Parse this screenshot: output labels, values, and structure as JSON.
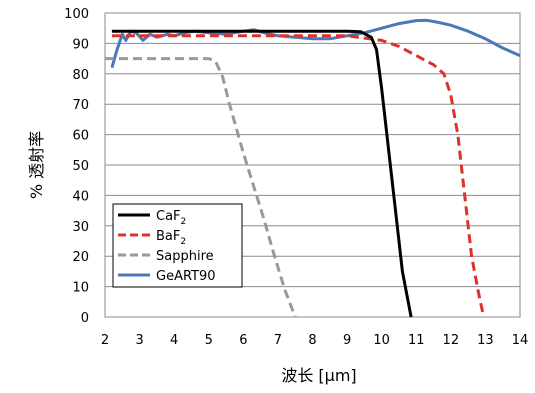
{
  "chart_data": {
    "type": "line",
    "xlabel": "波长 [µm]",
    "ylabel": "% 透射率",
    "xlim": [
      2,
      14
    ],
    "ylim": [
      0,
      100
    ],
    "x_ticks": [
      "2",
      "3",
      "4",
      "5",
      "6",
      "7",
      "8",
      "9",
      "10",
      "11",
      "12",
      "13",
      "14"
    ],
    "y_ticks": [
      "0",
      "10",
      "20",
      "30",
      "40",
      "50",
      "60",
      "70",
      "80",
      "90",
      "100"
    ],
    "grid": "horizontal",
    "legend_position": "bottom-left",
    "series": [
      {
        "name": "CaF₂",
        "legend_main": "CaF",
        "legend_sub": "2",
        "color": "#000000",
        "dash": "solid",
        "points": [
          [
            2.2,
            94
          ],
          [
            9.0,
            94
          ],
          [
            9.4,
            93.8
          ],
          [
            9.7,
            92
          ],
          [
            9.85,
            88
          ],
          [
            10.0,
            75
          ],
          [
            10.2,
            55
          ],
          [
            10.4,
            35
          ],
          [
            10.6,
            15
          ],
          [
            10.85,
            0
          ]
        ]
      },
      {
        "name": "BaF₂",
        "legend_main": "BaF",
        "legend_sub": "2",
        "color": "#e0302a",
        "dash": "dashed",
        "points": [
          [
            2.2,
            92.5
          ],
          [
            8.0,
            92.5
          ],
          [
            9.0,
            92.5
          ],
          [
            10.0,
            91
          ],
          [
            10.5,
            89
          ],
          [
            11.0,
            86
          ],
          [
            11.5,
            83
          ],
          [
            11.8,
            80
          ],
          [
            12.0,
            73
          ],
          [
            12.2,
            60
          ],
          [
            12.4,
            40
          ],
          [
            12.6,
            20
          ],
          [
            12.8,
            8
          ],
          [
            12.95,
            0
          ]
        ]
      },
      {
        "name": "Sapphire",
        "color": "#999999",
        "dash": "dashed",
        "points": [
          [
            2.0,
            85
          ],
          [
            5.0,
            85
          ],
          [
            5.2,
            84
          ],
          [
            5.4,
            79
          ],
          [
            5.6,
            70
          ],
          [
            5.8,
            62
          ],
          [
            6.0,
            54
          ],
          [
            6.3,
            43
          ],
          [
            6.6,
            32
          ],
          [
            6.9,
            20
          ],
          [
            7.2,
            9
          ],
          [
            7.5,
            0
          ]
        ]
      },
      {
        "name": "GeART90",
        "color": "#4a78b8",
        "dash": "solid",
        "points": [
          [
            2.2,
            82
          ],
          [
            2.35,
            88
          ],
          [
            2.5,
            93
          ],
          [
            2.6,
            91
          ],
          [
            2.75,
            94
          ],
          [
            2.9,
            93.5
          ],
          [
            3.1,
            91
          ],
          [
            3.3,
            93
          ],
          [
            3.5,
            92
          ],
          [
            3.8,
            93
          ],
          [
            4.0,
            92.5
          ],
          [
            4.3,
            93.5
          ],
          [
            4.6,
            94
          ],
          [
            5.0,
            93.5
          ],
          [
            5.5,
            93
          ],
          [
            6.0,
            94
          ],
          [
            6.3,
            94.5
          ],
          [
            6.6,
            93.5
          ],
          [
            7.0,
            92.5
          ],
          [
            7.5,
            92
          ],
          [
            8.0,
            91.5
          ],
          [
            8.5,
            91.5
          ],
          [
            9.0,
            92.5
          ],
          [
            9.5,
            93.5
          ],
          [
            10.0,
            95
          ],
          [
            10.5,
            96.5
          ],
          [
            11.0,
            97.5
          ],
          [
            11.3,
            97.6
          ],
          [
            11.6,
            97
          ],
          [
            12.0,
            96
          ],
          [
            12.5,
            94
          ],
          [
            13.0,
            91.5
          ],
          [
            13.5,
            88.5
          ],
          [
            14.0,
            86
          ]
        ]
      }
    ]
  }
}
